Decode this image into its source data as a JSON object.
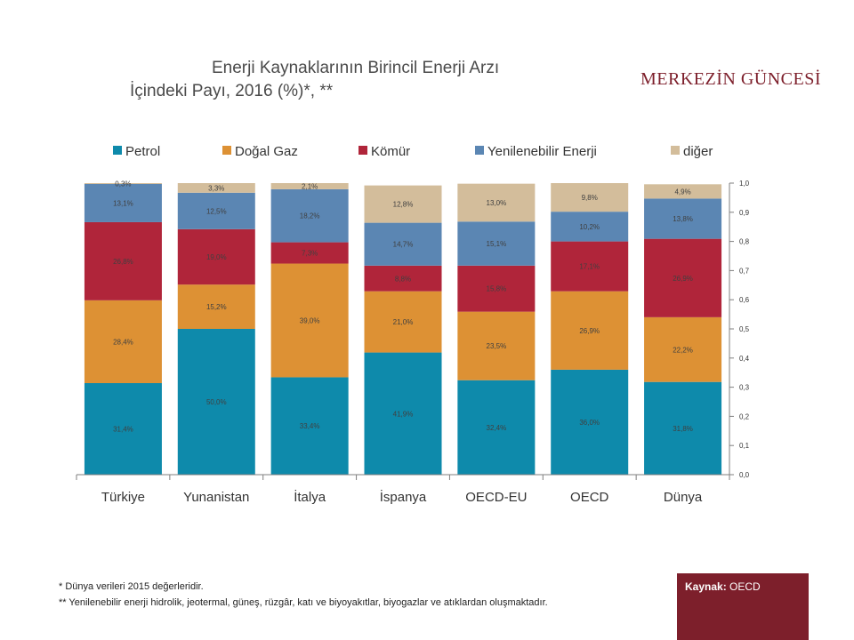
{
  "header": {
    "title_line1": "Enerji Kaynaklarının Birincil Enerji Arzı",
    "title_line2": "İçindeki Payı, 2016 (%)*, **",
    "brand": "MERKEZİN GÜNCESİ"
  },
  "footer": {
    "note1": "* Dünya verileri 2015 değerleridir.",
    "note2": "** Yenilenebilir enerji hidrolik, jeotermal, güneş, rüzgâr, katı ve biyoyakıtlar, biyogazlar ve atıklardan oluşmaktadır.",
    "source_label": "Kaynak:",
    "source_value": "OECD"
  },
  "chart_data": {
    "type": "bar",
    "stacked": true,
    "categories": [
      "Türkiye",
      "Yunanistan",
      "İtalya",
      "İspanya",
      "OECD-EU",
      "OECD",
      "Dünya"
    ],
    "series": [
      {
        "name": "Petrol",
        "color": "#0e8aab",
        "values": [
          0.314,
          0.5,
          0.334,
          0.419,
          0.324,
          0.36,
          0.318
        ],
        "labels": [
          "31,4%",
          "50,0%",
          "33,4%",
          "41,9%",
          "32,4%",
          "36,0%",
          "31,8%"
        ]
      },
      {
        "name": "Doğal Gaz",
        "color": "#dd9134",
        "values": [
          0.284,
          0.152,
          0.39,
          0.21,
          0.235,
          0.269,
          0.222
        ],
        "labels": [
          "28,4%",
          "15,2%",
          "39,0%",
          "21,0%",
          "23,5%",
          "26,9%",
          "22,2%"
        ]
      },
      {
        "name": "Kömür",
        "color": "#b0253a",
        "values": [
          0.268,
          0.19,
          0.073,
          0.088,
          0.158,
          0.171,
          0.269
        ],
        "labels": [
          "26,8%",
          "19,0%",
          "7,3%",
          "8,8%",
          "15,8%",
          "17,1%",
          "26,9%"
        ]
      },
      {
        "name": "Yenilenebilir Enerji",
        "color": "#5b86b3",
        "values": [
          0.131,
          0.125,
          0.182,
          0.147,
          0.151,
          0.102,
          0.138
        ],
        "labels": [
          "13,1%",
          "12,5%",
          "18,2%",
          "14,7%",
          "15,1%",
          "10,2%",
          "13,8%"
        ]
      },
      {
        "name": "diğer",
        "color": "#d3bd9b",
        "values": [
          0.003,
          0.033,
          0.021,
          0.128,
          0.13,
          0.098,
          0.049
        ],
        "labels": [
          "0,3%",
          "3,3%",
          "2,1%",
          "12,8%",
          "13,0%",
          "9,8%",
          "4,9%"
        ]
      }
    ],
    "ylim": [
      0,
      1.0
    ],
    "yticks": [
      "0,0",
      "0,1",
      "0,2",
      "0,3",
      "0,4",
      "0,5",
      "0,6",
      "0,7",
      "0,8",
      "0,9",
      "1,0"
    ],
    "y_axis_side": "right",
    "legend_position": "top",
    "grid": false
  }
}
